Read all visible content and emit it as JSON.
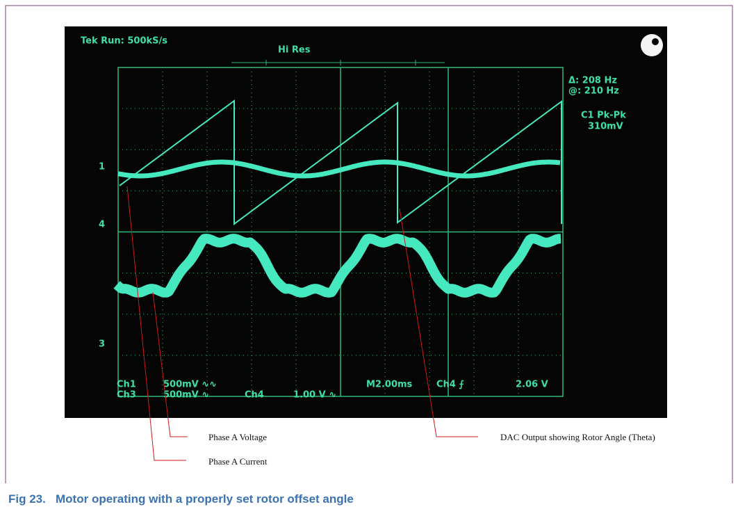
{
  "figure": {
    "scope": {
      "header": "Tek Run: 500kS/s",
      "mode": "Hi Res",
      "delta": "Δ: 208 Hz",
      "at": "@: 210 Hz",
      "measure_name": "C1 Pk-Pk",
      "measure_value": "310mV",
      "markers": [
        "1",
        "4",
        "3"
      ],
      "footer": {
        "ch1": "Ch1",
        "ch1_scale": "500mV ∿∿",
        "ch3": "Ch3",
        "ch3_scale": "500mV ∿",
        "ch4": "Ch4",
        "ch4_scale": "1.00 V ∿",
        "timebase": "M2.00ms",
        "trigger_source": "Ch4 ⨍",
        "trigger_level": "2.06 V"
      }
    },
    "annotations": {
      "voltage": "Phase A Voltage",
      "current": "Phase A Current",
      "dac": "DAC Output showing Rotor Angle (Theta)"
    },
    "caption": "Fig 23.   Motor operating with a properly set rotor offset angle"
  }
}
